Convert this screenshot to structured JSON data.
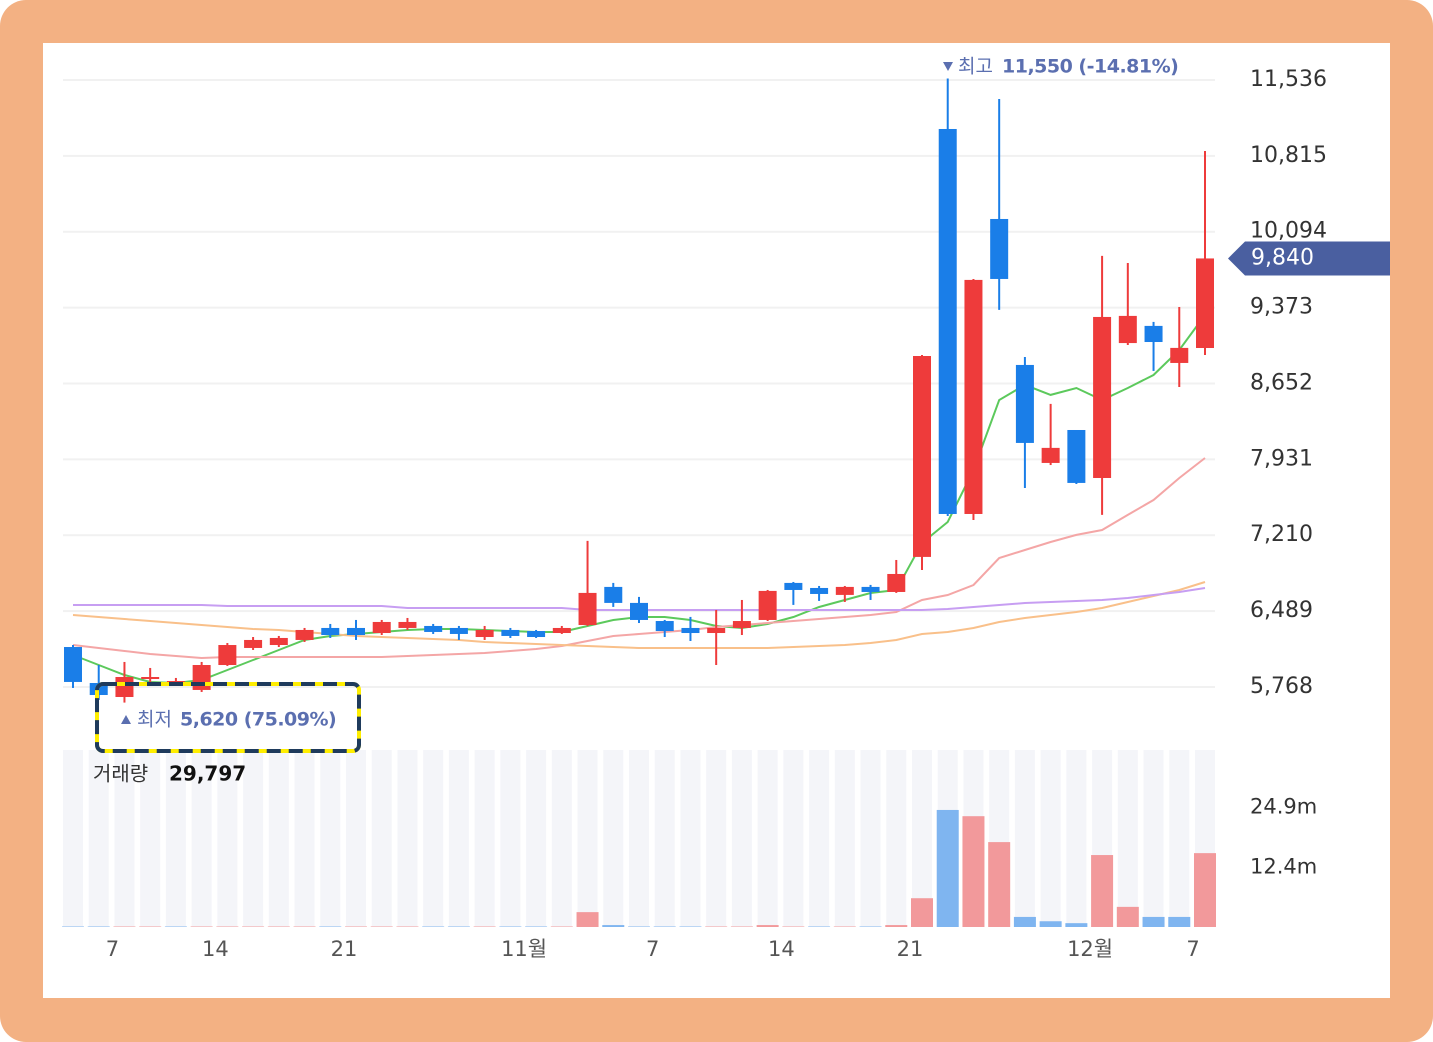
{
  "chart_data": {
    "type": "candlestick",
    "categories": [
      null,
      null,
      "7",
      null,
      null,
      null,
      "14",
      null,
      null,
      null,
      null,
      "21",
      null,
      null,
      null,
      null,
      null,
      null,
      "11월",
      null,
      null,
      null,
      null,
      "7",
      null,
      null,
      null,
      null,
      "14",
      null,
      null,
      null,
      null,
      "21",
      null,
      null,
      null,
      null,
      null,
      null,
      "12월",
      null,
      null,
      null,
      "7"
    ],
    "open": [
      6148,
      5806,
      5673,
      5854,
      5816,
      5740,
      5977,
      6139,
      6167,
      6215,
      6329,
      6329,
      6281,
      6329,
      6348,
      6329,
      6243,
      6310,
      6300,
      6281,
      6357,
      6719,
      6567,
      6395,
      6329,
      6281,
      6329,
      6405,
      6757,
      6709,
      6643,
      6719,
      6671,
      7004,
      11070,
      7412,
      10215,
      8828,
      7897,
      8210,
      7754,
      9036,
      9199,
      8847,
      8989
    ],
    "high": [
      6167,
      5977,
      6006,
      5949,
      5854,
      6006,
      6186,
      6243,
      6253,
      6329,
      6367,
      6405,
      6405,
      6424,
      6367,
      6348,
      6348,
      6329,
      6310,
      6348,
      7156,
      6757,
      6624,
      6405,
      6434,
      6500,
      6595,
      6690,
      6766,
      6728,
      6728,
      6738,
      6975,
      8923,
      11550,
      9645,
      11355,
      8904,
      8458,
      8210,
      9864,
      9797,
      9237,
      9379,
      10861
    ],
    "low": [
      5759,
      5645,
      5620,
      5797,
      5797,
      5721,
      5968,
      6120,
      6148,
      6196,
      6234,
      6215,
      6262,
      6310,
      6272,
      6215,
      6215,
      6234,
      6234,
      6272,
      6348,
      6529,
      6376,
      6243,
      6205,
      5977,
      6262,
      6395,
      6548,
      6586,
      6576,
      6595,
      6662,
      6880,
      7393,
      7355,
      9351,
      7659,
      7877,
      7697,
      7403,
      9018,
      8771,
      8619,
      8923
    ],
    "close": [
      5816,
      5692,
      5863,
      5863,
      5825,
      5977,
      6167,
      6215,
      6234,
      6310,
      6262,
      6262,
      6386,
      6386,
      6291,
      6272,
      6310,
      6253,
      6243,
      6329,
      6662,
      6567,
      6405,
      6300,
      6281,
      6329,
      6395,
      6681,
      6690,
      6652,
      6719,
      6671,
      6842,
      8913,
      7412,
      9636,
      9645,
      8087,
      8040,
      7707,
      9284,
      9294,
      9046,
      8990,
      9840
    ],
    "up_color": "#ee3b3b",
    "down_color": "#1a7ee8",
    "ylim": [
      5217,
      11868
    ],
    "yticks": [
      {
        "value": 5768,
        "label": "5,768"
      },
      {
        "value": 6489,
        "label": "6,489"
      },
      {
        "value": 7210,
        "label": "7,210"
      },
      {
        "value": 7931,
        "label": "7,931"
      },
      {
        "value": 8652,
        "label": "8,652"
      },
      {
        "value": 9373,
        "label": "9,373"
      },
      {
        "value": 10094,
        "label": "10,094"
      },
      {
        "value": 10815,
        "label": "10,815"
      },
      {
        "value": 11536,
        "label": "11,536"
      }
    ],
    "grid": true,
    "moving_averages": [
      {
        "color": "#5cc95c",
        "values": [
          6072,
          5977,
          5882,
          5816,
          5806,
          5835,
          5930,
          6025,
          6120,
          6215,
          6253,
          6272,
          6291,
          6310,
          6319,
          6319,
          6310,
          6300,
          6291,
          6291,
          6348,
          6405,
          6433,
          6433,
          6405,
          6348,
          6329,
          6367,
          6433,
          6528,
          6595,
          6661,
          6690,
          7136,
          7336,
          7830,
          8495,
          8638,
          8543,
          8609,
          8495,
          8609,
          8733,
          8970,
          9303
        ]
      },
      {
        "color": "#f4a6a6",
        "values": [
          6167,
          6139,
          6110,
          6082,
          6063,
          6044,
          6053,
          6053,
          6053,
          6053,
          6053,
          6053,
          6053,
          6063,
          6072,
          6082,
          6091,
          6110,
          6129,
          6158,
          6205,
          6253,
          6272,
          6291,
          6310,
          6338,
          6357,
          6376,
          6395,
          6414,
          6433,
          6452,
          6481,
          6595,
          6642,
          6737,
          6994,
          7070,
          7146,
          7213,
          7260,
          7403,
          7545,
          7754,
          7944
        ]
      },
      {
        "color": "#f9c08a",
        "values": [
          6452,
          6433,
          6414,
          6395,
          6376,
          6357,
          6338,
          6319,
          6310,
          6291,
          6272,
          6253,
          6243,
          6234,
          6224,
          6215,
          6196,
          6186,
          6177,
          6167,
          6158,
          6148,
          6139,
          6139,
          6139,
          6139,
          6139,
          6139,
          6148,
          6158,
          6167,
          6186,
          6215,
          6272,
          6291,
          6329,
          6386,
          6424,
          6452,
          6481,
          6519,
          6576,
          6633,
          6690,
          6766
        ]
      },
      {
        "color": "#c79ef2",
        "values": [
          6547,
          6547,
          6547,
          6547,
          6547,
          6547,
          6538,
          6538,
          6538,
          6538,
          6538,
          6538,
          6538,
          6519,
          6519,
          6519,
          6519,
          6519,
          6519,
          6519,
          6500,
          6500,
          6500,
          6500,
          6500,
          6500,
          6500,
          6500,
          6500,
          6500,
          6500,
          6500,
          6500,
          6500,
          6509,
          6528,
          6547,
          6566,
          6576,
          6585,
          6595,
          6614,
          6642,
          6671,
          6709
        ]
      }
    ],
    "high_annotation": {
      "label": "최고",
      "text": "11,550 (-14.81%)"
    },
    "low_annotation": {
      "label": "최저",
      "text": "5,620 (75.09%)"
    },
    "current_price": {
      "value": 9840,
      "label": "9,840"
    },
    "volume": {
      "title": "거래량",
      "current": "29,797",
      "values": [
        0.1,
        0.1,
        0.1,
        0.1,
        0.1,
        0.1,
        0.1,
        0.1,
        0.1,
        0.1,
        0.1,
        0.1,
        0.1,
        0.1,
        0.1,
        0.1,
        0.1,
        0.1,
        0.1,
        0.1,
        3.1,
        0.4,
        0.1,
        0.1,
        0.1,
        0.1,
        0.1,
        0.4,
        0.1,
        0.1,
        0.1,
        0.1,
        0.4,
        6.0,
        24.4,
        23.1,
        17.7,
        2.1,
        1.2,
        0.8,
        15.0,
        4.2,
        2.1,
        2.1,
        15.4
      ],
      "up_color": "#f2999b",
      "down_color": "#7fb5f0",
      "ylim": [
        0,
        36.9
      ],
      "yticks": [
        {
          "value": 12.4,
          "label": "12.4m"
        },
        {
          "value": 24.9,
          "label": "24.9m"
        }
      ]
    }
  }
}
